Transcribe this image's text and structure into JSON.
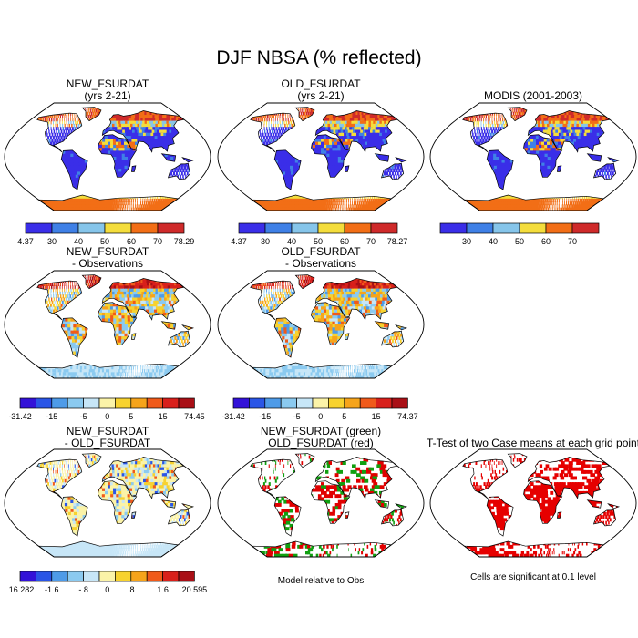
{
  "title": "DJF NBSA (% reflected)",
  "colors": {
    "nbsa_scale": [
      "#3a2ee8",
      "#3f80e6",
      "#86c5ea",
      "#f4dd3c",
      "#f26e16",
      "#cf2a2a"
    ],
    "diff_scale": [
      "#3312d8",
      "#2a55e6",
      "#4e9be8",
      "#8bcaf0",
      "#c7e6f7",
      "#fbf3a8",
      "#f7d22f",
      "#f6a41b",
      "#f05a1a",
      "#d8201b",
      "#a90f16"
    ],
    "land_blue": "#3a2ee8",
    "ocean": "#ffffff",
    "sig_red": "#e60000",
    "new_green": "#10a010",
    "old_red": "#e00000"
  },
  "panels": [
    {
      "id": "p1",
      "title_lines": [
        "NEW_FSURDAT",
        "(yrs 2-21)"
      ],
      "type": "nbsa"
    },
    {
      "id": "p2",
      "title_lines": [
        "OLD_FSURDAT",
        "(yrs 2-21)"
      ],
      "type": "nbsa"
    },
    {
      "id": "p3",
      "title_lines": [
        "MODIS (2001-2003)"
      ],
      "type": "nbsa"
    },
    {
      "id": "p4",
      "title_lines": [
        "NEW_FSURDAT",
        "- Observations"
      ],
      "type": "diff"
    },
    {
      "id": "p5",
      "title_lines": [
        "OLD_FSURDAT",
        "- Observations"
      ],
      "type": "diff"
    },
    {
      "id": "p6",
      "title_lines": [
        "NEW_FSURDAT",
        "- OLD_FSURDAT"
      ],
      "type": "diff2"
    },
    {
      "id": "p7",
      "title_lines": [
        "NEW_FSURDAT (green)",
        "OLD_FSURDAT (red)"
      ],
      "type": "compare",
      "note": "Model relative to Obs"
    },
    {
      "id": "p8",
      "title_lines": [
        "T-Test of two Case means at each grid point"
      ],
      "type": "ttest",
      "note": "Cells are significant at 0.1 level"
    }
  ],
  "colorbars": [
    {
      "id": "cb1",
      "labels": [
        "4.37",
        "30",
        "40",
        "50",
        "60",
        "70",
        "78.29"
      ]
    },
    {
      "id": "cb2",
      "labels": [
        "4.37",
        "30",
        "40",
        "50",
        "60",
        "70",
        "78.27"
      ]
    },
    {
      "id": "cb3",
      "labels": [
        "",
        "30",
        "40",
        "50",
        "60",
        "70",
        ""
      ]
    },
    {
      "id": "cb4",
      "labels": [
        "-31.42",
        "-15",
        "-5",
        "0",
        "5",
        "15",
        "74.45"
      ]
    },
    {
      "id": "cb5",
      "labels": [
        "-31.42",
        "-15",
        "-5",
        "0",
        "5",
        "15",
        "74.37"
      ]
    },
    {
      "id": "cb6",
      "labels": [
        "-16.282",
        "-1.6",
        "-.8",
        "0",
        ".8",
        "1.6",
        "20.595"
      ]
    }
  ],
  "chart_data": [
    {
      "type": "heatmap",
      "title": "NEW_FSURDAT (yrs 2-21)",
      "value_range": [
        4.37,
        78.29
      ],
      "legend_ticks": [
        30,
        40,
        50,
        60,
        70
      ]
    },
    {
      "type": "heatmap",
      "title": "OLD_FSURDAT (yrs 2-21)",
      "value_range": [
        4.37,
        78.27
      ],
      "legend_ticks": [
        30,
        40,
        50,
        60,
        70
      ]
    },
    {
      "type": "heatmap",
      "title": "MODIS (2001-2003)",
      "legend_ticks": [
        30,
        40,
        50,
        60,
        70
      ]
    },
    {
      "type": "heatmap",
      "title": "NEW_FSURDAT - Observations",
      "value_range": [
        -31.42,
        74.45
      ],
      "legend_ticks": [
        -15,
        -5,
        0,
        5,
        15
      ]
    },
    {
      "type": "heatmap",
      "title": "OLD_FSURDAT - Observations",
      "value_range": [
        -31.42,
        74.37
      ],
      "legend_ticks": [
        -15,
        -5,
        0,
        5,
        15
      ]
    },
    {
      "type": "heatmap",
      "title": "NEW_FSURDAT - OLD_FSURDAT",
      "value_range": [
        -16.282,
        20.595
      ],
      "legend_ticks": [
        -1.6,
        -0.8,
        0,
        0.8,
        1.6
      ]
    },
    {
      "type": "heatmap",
      "title": "NEW_FSURDAT (green) OLD_FSURDAT (red)",
      "annotation": "Model relative to Obs"
    },
    {
      "type": "heatmap",
      "title": "T-Test of two Case means at each grid point",
      "annotation": "Cells are significant at 0.1 level"
    }
  ]
}
